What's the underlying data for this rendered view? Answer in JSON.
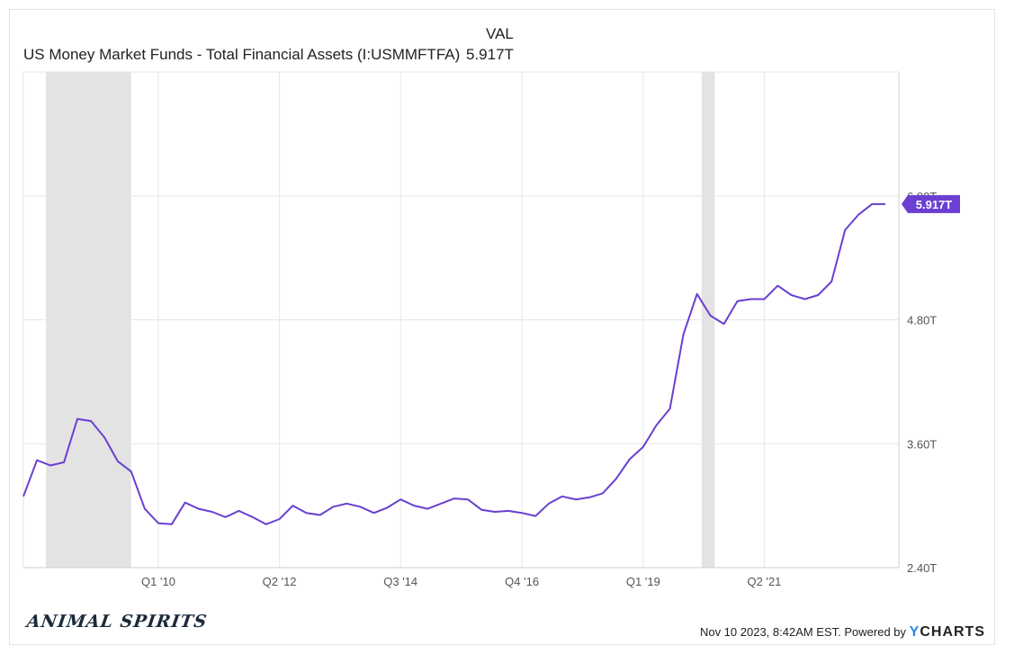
{
  "header": {
    "column_label": "VAL",
    "series_label": "US Money Market Funds - Total Financial Assets (I:USMMFTFA)",
    "series_value": "5.917T"
  },
  "brand": {
    "text": "ANIMAL SPIRITS"
  },
  "footer": {
    "timestamp": "Nov 10 2023, 8:42AM EST. Powered by",
    "logo_y": "Y",
    "logo_rest": "CHARTS"
  },
  "colors": {
    "series": "#6a3fd1",
    "recession": "#e3e3e3",
    "grid": "#e6e6e6"
  },
  "chart_data": {
    "type": "line",
    "title": "",
    "xlabel": "",
    "ylabel": "",
    "x_ticks": [
      "Q1 '10",
      "Q2 '12",
      "Q3 '14",
      "Q4 '16",
      "Q1 '19",
      "Q2 '21"
    ],
    "y_ticks": [
      "2.40T",
      "3.60T",
      "4.80T",
      "6.00T"
    ],
    "ylim": [
      2.4,
      7.2
    ],
    "xlim": [
      "2007-07-01",
      "2023-09-30"
    ],
    "grid": true,
    "last_value_label": "5.917T",
    "recessions": [
      {
        "start": "2007-12-01",
        "end": "2009-06-30"
      },
      {
        "start": "2020-02-01",
        "end": "2020-04-30"
      }
    ],
    "series": [
      {
        "name": "US Money Market Funds - Total Financial Assets (I:USMMFTFA)",
        "x": [
          "2007-07-01",
          "2007-10-01",
          "2008-01-01",
          "2008-04-01",
          "2008-07-01",
          "2008-10-01",
          "2009-01-01",
          "2009-04-01",
          "2009-07-01",
          "2009-10-01",
          "2010-01-01",
          "2010-04-01",
          "2010-07-01",
          "2010-10-01",
          "2011-01-01",
          "2011-04-01",
          "2011-07-01",
          "2011-10-01",
          "2012-01-01",
          "2012-04-01",
          "2012-07-01",
          "2012-10-01",
          "2013-01-01",
          "2013-04-01",
          "2013-07-01",
          "2013-10-01",
          "2014-01-01",
          "2014-04-01",
          "2014-07-01",
          "2014-10-01",
          "2015-01-01",
          "2015-04-01",
          "2015-07-01",
          "2015-10-01",
          "2016-01-01",
          "2016-04-01",
          "2016-07-01",
          "2016-10-01",
          "2017-01-01",
          "2017-04-01",
          "2017-07-01",
          "2017-10-01",
          "2018-01-01",
          "2018-04-01",
          "2018-07-01",
          "2018-10-01",
          "2019-01-01",
          "2019-04-01",
          "2019-07-01",
          "2019-10-01",
          "2020-01-01",
          "2020-04-01",
          "2020-07-01",
          "2020-10-01",
          "2021-01-01",
          "2021-04-01",
          "2021-07-01",
          "2021-10-01",
          "2022-01-01",
          "2022-04-01",
          "2022-07-01",
          "2022-10-01",
          "2023-01-01",
          "2023-04-01",
          "2023-07-01"
        ],
        "values": [
          3.09,
          3.44,
          3.39,
          3.42,
          3.84,
          3.82,
          3.66,
          3.43,
          3.33,
          2.97,
          2.83,
          2.82,
          3.03,
          2.97,
          2.94,
          2.89,
          2.95,
          2.89,
          2.82,
          2.87,
          3.0,
          2.93,
          2.91,
          2.99,
          3.02,
          2.99,
          2.93,
          2.98,
          3.06,
          3.0,
          2.97,
          3.02,
          3.07,
          3.06,
          2.96,
          2.94,
          2.95,
          2.93,
          2.9,
          3.02,
          3.09,
          3.06,
          3.08,
          3.12,
          3.26,
          3.45,
          3.57,
          3.78,
          3.94,
          4.66,
          5.05,
          4.84,
          4.76,
          4.98,
          5.0,
          5.0,
          5.13,
          5.04,
          5.0,
          5.04,
          5.17,
          5.67,
          5.82,
          5.92,
          5.92
        ]
      }
    ]
  }
}
